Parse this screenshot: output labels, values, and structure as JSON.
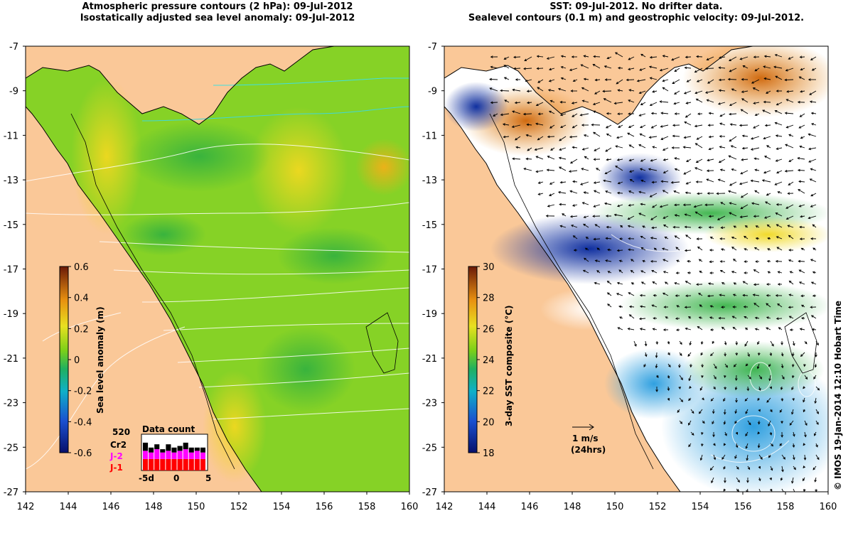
{
  "left_panel": {
    "title_line1": "Atmospheric pressure contours (2 hPa): 09-Jul-2012",
    "title_line2": "Isostatically adjusted sea level anomaly: 09-Jul-2012",
    "colorbar_label": "Sea level anomaly (m)",
    "data_count": {
      "title": "Data count",
      "satellites": [
        "520",
        "Cr2",
        "J-2",
        "J-1"
      ],
      "satellite_colors": [
        "#000000",
        "#000000",
        "#ff00ff",
        "#ff0000"
      ],
      "x_ticks": [
        "-5d",
        "0",
        "5"
      ]
    }
  },
  "right_panel": {
    "title_line1": "SST: 09-Jul-2012. No drifter data.",
    "title_line2": "Sealevel contours (0.1 m) and geostrophic velocity: 09-Jul-2012.",
    "colorbar_label": "3-day SST composite (°C)",
    "velocity_scale_label": "1 m/s",
    "velocity_scale_sub": "(24hrs)"
  },
  "credit": "© IMOS 19-Jan-2014 12:10 Hobart Time",
  "chart_data": [
    {
      "type": "heatmap",
      "title": "Atmospheric pressure contours (2 hPa): 09-Jul-2012 / Isostatically adjusted sea level anomaly: 09-Jul-2012",
      "x_ticks": [
        142,
        144,
        146,
        148,
        150,
        152,
        154,
        156,
        158,
        160
      ],
      "y_ticks": [
        -7,
        -9,
        -11,
        -13,
        -15,
        -17,
        -19,
        -21,
        -23,
        -25,
        -27
      ],
      "xlim": [
        142,
        160
      ],
      "ylim": [
        -27,
        -7
      ],
      "colorbar": {
        "label": "Sea level anomaly (m)",
        "range": [
          -0.6,
          0.6
        ],
        "ticks": [
          0.6,
          0.4,
          0.2,
          0,
          -0.2,
          -0.4,
          -0.6
        ]
      },
      "data_count_chart": {
        "type": "bar",
        "x_ticks": [
          "-5d",
          "0",
          "5"
        ],
        "series": [
          {
            "name": "J-1",
            "values": [
              7,
              7,
              7,
              7,
              7,
              7,
              7,
              7,
              7,
              7,
              7
            ]
          },
          {
            "name": "J-2",
            "values": [
              5,
              4,
              6,
              4,
              5,
              4,
              5,
              6,
              4,
              5,
              4
            ]
          },
          {
            "name": "520",
            "values": [
              5,
              3,
              3,
              2,
              4,
              3,
              3,
              4,
              3,
              2,
              3
            ]
          }
        ]
      }
    },
    {
      "type": "heatmap",
      "title": "SST: 09-Jul-2012. No drifter data. / Sealevel contours (0.1 m) and geostrophic velocity: 09-Jul-2012.",
      "x_ticks": [
        142,
        144,
        146,
        148,
        150,
        152,
        154,
        156,
        158,
        160
      ],
      "y_ticks": [
        -7,
        -9,
        -11,
        -13,
        -15,
        -17,
        -19,
        -21,
        -23,
        -25,
        -27
      ],
      "xlim": [
        142,
        160
      ],
      "ylim": [
        -27,
        -7
      ],
      "colorbar": {
        "label": "3-day SST composite (°C)",
        "range": [
          18,
          30
        ],
        "ticks": [
          30,
          28,
          26,
          24,
          22,
          20,
          18
        ]
      }
    }
  ]
}
